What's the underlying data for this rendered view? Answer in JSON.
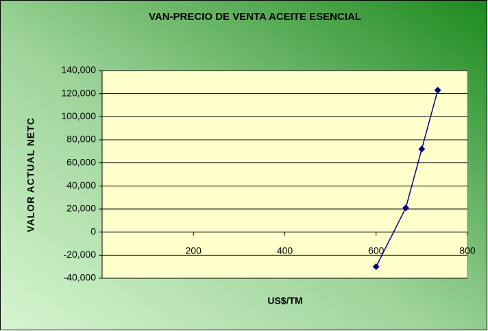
{
  "chart_data": {
    "type": "scatter",
    "title": "VAN-PRECIO DE VENTA ACEITE ESENCIAL",
    "x_label": "US$/TM",
    "y_label": "VALOR ACTUAL NETC",
    "series": [
      {
        "color": "#000080",
        "x": [
          600,
          665,
          700,
          735
        ],
        "values": [
          -30000,
          21000,
          72000,
          123000
        ]
      }
    ],
    "xlim": [
      0,
      800
    ],
    "xticks": [
      200,
      400,
      600,
      800
    ],
    "ylim": [
      -40000,
      140000
    ],
    "yticks": [
      {
        "value": -40000,
        "label": "-40,000"
      },
      {
        "value": -20000,
        "label": "-20,000"
      },
      0,
      {
        "value": 20000,
        "label": "20,000"
      },
      {
        "value": 40000,
        "label": "40,000"
      },
      {
        "value": 60000,
        "label": "60,000"
      },
      {
        "value": 80000,
        "label": "80,000"
      },
      {
        "value": 100000,
        "label": "100,000"
      },
      {
        "value": 120000,
        "label": "120,000"
      },
      {
        "value": 140000,
        "label": "140,000"
      }
    ],
    "grid": true
  }
}
